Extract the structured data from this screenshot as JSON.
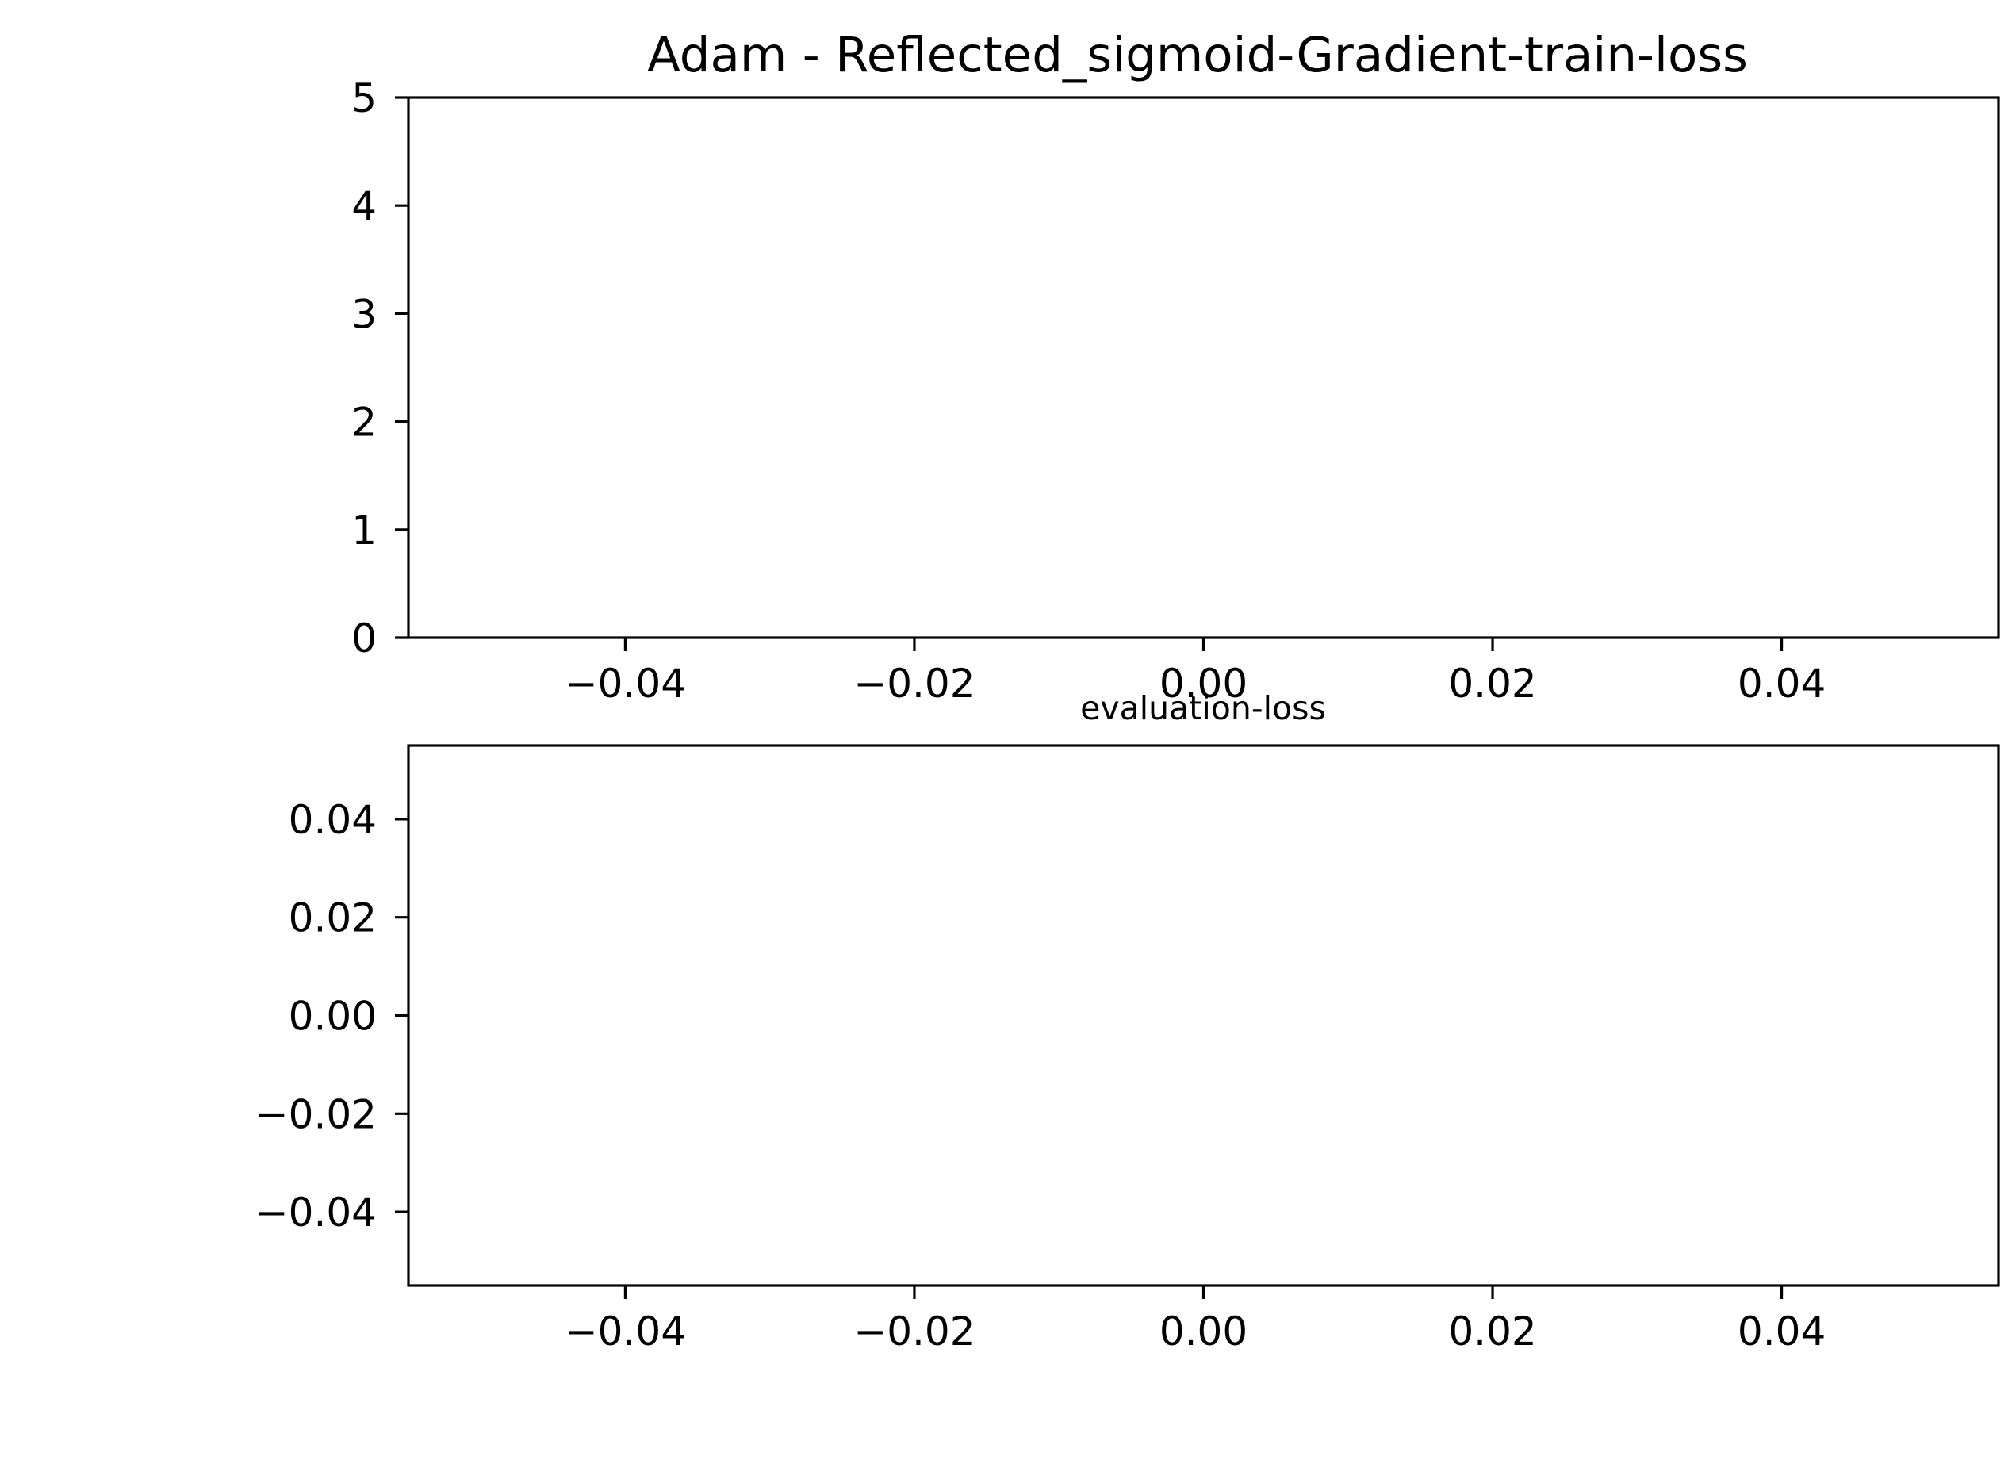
{
  "chart_data": [
    {
      "type": "line",
      "title": "Adam - Reflected_sigmoid-Gradient-train-loss",
      "xlabel": "",
      "ylabel": "",
      "xlim": [
        -0.055,
        0.055
      ],
      "ylim": [
        0,
        5
      ],
      "x_ticks": [
        -0.04,
        -0.02,
        0.0,
        0.02,
        0.04
      ],
      "x_tick_labels": [
        "−0.04",
        "−0.02",
        "0.00",
        "0.02",
        "0.04"
      ],
      "y_ticks": [
        0,
        1,
        2,
        3,
        4,
        5
      ],
      "y_tick_labels": [
        "0",
        "1",
        "2",
        "3",
        "4",
        "5"
      ],
      "series": [],
      "grid": false
    },
    {
      "type": "line",
      "title": "evaluation-loss",
      "xlabel": "",
      "ylabel": "",
      "xlim": [
        -0.055,
        0.055
      ],
      "ylim": [
        -0.055,
        0.055
      ],
      "x_ticks": [
        -0.04,
        -0.02,
        0.0,
        0.02,
        0.04
      ],
      "x_tick_labels": [
        "−0.04",
        "−0.02",
        "0.00",
        "0.02",
        "0.04"
      ],
      "y_ticks": [
        -0.04,
        -0.02,
        0.0,
        0.02,
        0.04
      ],
      "y_tick_labels": [
        "−0.04",
        "−0.02",
        "0.00",
        "0.02",
        "0.04"
      ],
      "series": [],
      "grid": false
    }
  ]
}
